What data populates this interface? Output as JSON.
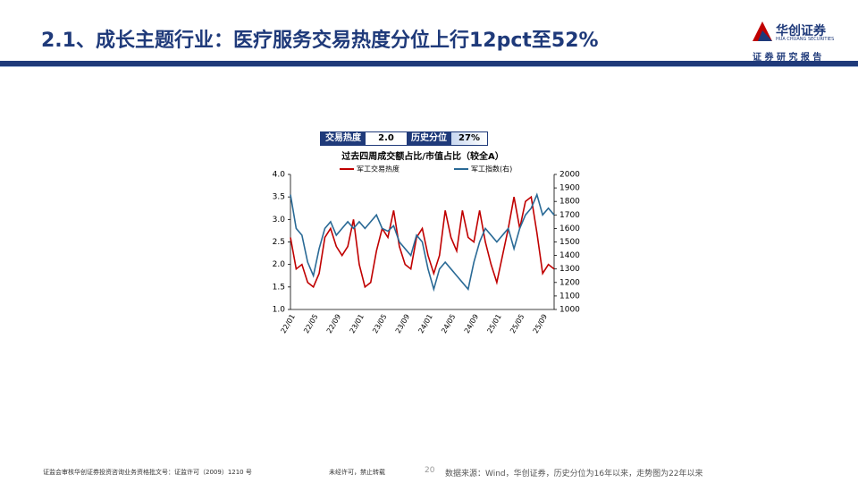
{
  "header": {
    "title": "2.1、成长主题行业：医疗服务交易热度分位上行12pct至52%",
    "logo": "华创证券",
    "logo_en": "HUA CHUANG SECURITIES",
    "tagline": "证 券 研 究 报 告"
  },
  "info_table": {
    "cells": [
      "交易热度",
      "2.0",
      "历史分位",
      "27%"
    ]
  },
  "footer": {
    "license": "证监会审核华创证券投资咨询业务资格批文号：证监许可（2009）1210 号",
    "notice": "未经许可，禁止转载",
    "page": "20",
    "source": "数据来源：Wind，华创证券，历史分位为16年以来，走势图为22年以来"
  },
  "chart_data": {
    "type": "line",
    "title": "过去四周成交额占比/市值占比（较全A）",
    "categories": [
      "22/01",
      null,
      null,
      null,
      "22/05",
      null,
      null,
      null,
      "22/09",
      null,
      null,
      null,
      "23/01",
      null,
      null,
      null,
      "23/05",
      null,
      null,
      null,
      "23/09",
      null,
      null,
      null,
      "24/01",
      null,
      null,
      null,
      "24/05",
      null,
      null,
      null,
      "24/09",
      null,
      null,
      null,
      "25/01",
      null,
      null,
      null,
      "25/05",
      null,
      null,
      null,
      "25/09",
      null,
      null
    ],
    "series": [
      {
        "name": "军工交易热度",
        "color": "#c00000",
        "values": [
          2.6,
          1.9,
          2.0,
          1.6,
          1.5,
          1.8,
          2.6,
          2.8,
          2.4,
          2.2,
          2.4,
          3.0,
          2.0,
          1.5,
          1.6,
          2.3,
          2.8,
          2.6,
          3.2,
          2.4,
          2.0,
          1.9,
          2.6,
          2.8,
          2.2,
          1.8,
          2.2,
          3.2,
          2.6,
          2.3,
          3.2,
          2.6,
          2.5,
          3.2,
          2.5,
          2.0,
          1.6,
          2.2,
          2.8,
          3.5,
          2.8,
          3.4,
          3.5,
          2.7,
          1.8,
          2.0,
          1.9
        ]
      },
      {
        "name": "军工指数(右)",
        "color": "#2a6a96",
        "axis": "y2",
        "values": [
          1850,
          1600,
          1550,
          1350,
          1250,
          1450,
          1600,
          1650,
          1550,
          1600,
          1650,
          1600,
          1650,
          1600,
          1650,
          1700,
          1600,
          1580,
          1620,
          1500,
          1450,
          1400,
          1550,
          1500,
          1300,
          1150,
          1300,
          1350,
          1300,
          1250,
          1200,
          1150,
          1350,
          1500,
          1600,
          1550,
          1500,
          1550,
          1600,
          1450,
          1600,
          1700,
          1750,
          1850,
          1700,
          1750,
          1700
        ]
      }
    ],
    "ylim": [
      1,
      4
    ],
    "yticks": [
      {
        "value": 1,
        "label": "1.0"
      },
      {
        "value": 1.5,
        "label": "1.5"
      },
      {
        "value": 2,
        "label": "2.0"
      },
      {
        "value": 2.5,
        "label": "2.5"
      },
      {
        "value": 3,
        "label": "3.0"
      },
      {
        "value": 3.5,
        "label": "3.5"
      },
      {
        "value": 4,
        "label": "4.0"
      }
    ],
    "y2lim": [
      1000,
      2000
    ],
    "y2ticks": [
      1000,
      1100,
      1200,
      1300,
      1400,
      1500,
      1600,
      1700,
      1800,
      1900,
      2000
    ],
    "grid": false
  }
}
